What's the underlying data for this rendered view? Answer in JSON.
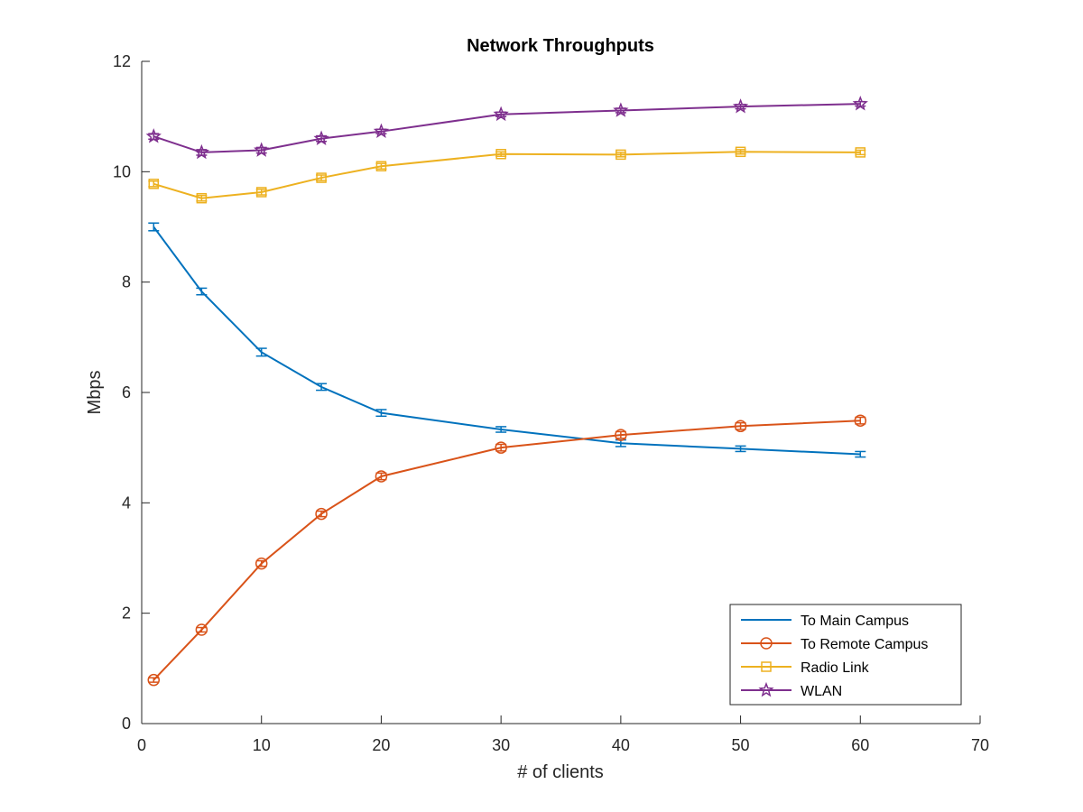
{
  "chart_data": {
    "type": "line",
    "title": "Network Throughputs",
    "xlabel": "# of clients",
    "ylabel": "Mbps",
    "xlim": [
      0,
      70
    ],
    "ylim": [
      0,
      12
    ],
    "xticks": [
      0,
      10,
      20,
      30,
      40,
      50,
      60,
      70
    ],
    "yticks": [
      0,
      2,
      4,
      6,
      8,
      10,
      12
    ],
    "grid": false,
    "legend_position": "bottom-right",
    "x": [
      1,
      5,
      10,
      15,
      20,
      30,
      40,
      50,
      60
    ],
    "series": [
      {
        "name": "To Main Campus",
        "color": "#0072BD",
        "marker": "none",
        "values": [
          9.0,
          7.83,
          6.73,
          6.1,
          5.63,
          5.33,
          5.08,
          4.98,
          4.88
        ],
        "errors": [
          0.07,
          0.06,
          0.07,
          0.06,
          0.06,
          0.05,
          0.06,
          0.05,
          0.05
        ]
      },
      {
        "name": "To Remote Campus",
        "color": "#D95319",
        "marker": "circle",
        "values": [
          0.79,
          1.7,
          2.9,
          3.8,
          4.48,
          5.0,
          5.23,
          5.39,
          5.49
        ],
        "errors": [
          0.04,
          0.04,
          0.05,
          0.05,
          0.06,
          0.06,
          0.06,
          0.06,
          0.06
        ]
      },
      {
        "name": "Radio Link",
        "color": "#EDB120",
        "marker": "square",
        "values": [
          9.78,
          9.52,
          9.63,
          9.89,
          10.1,
          10.32,
          10.31,
          10.36,
          10.35
        ],
        "errors": [
          0.05,
          0.05,
          0.05,
          0.05,
          0.05,
          0.04,
          0.04,
          0.04,
          0.04
        ]
      },
      {
        "name": "WLAN",
        "color": "#7E2F8E",
        "marker": "star",
        "values": [
          10.64,
          10.35,
          10.39,
          10.6,
          10.73,
          11.04,
          11.11,
          11.18,
          11.23
        ],
        "errors": [
          0.05,
          0.05,
          0.05,
          0.05,
          0.04,
          0.04,
          0.04,
          0.04,
          0.04
        ]
      }
    ]
  }
}
